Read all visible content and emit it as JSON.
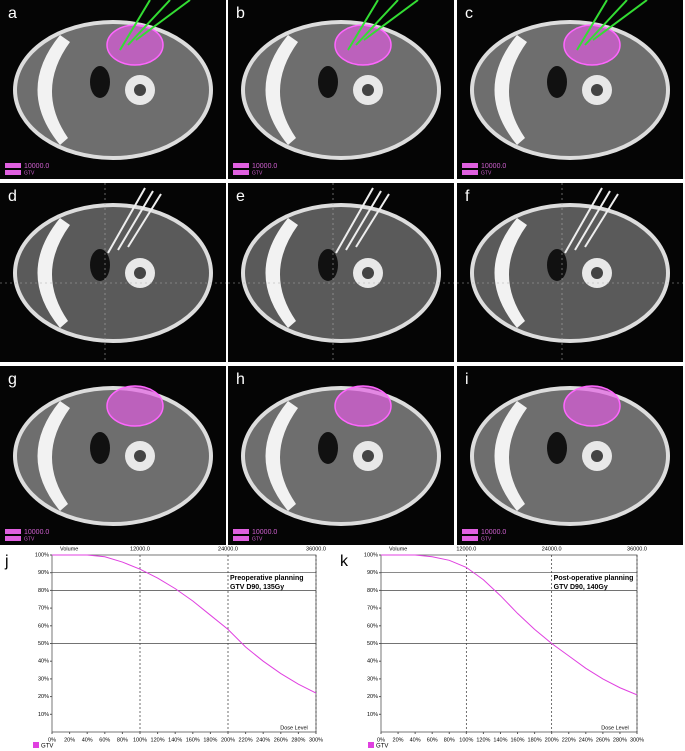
{
  "image_panels": [
    {
      "label": "a",
      "legend": [
        "10000.0",
        "GTV"
      ],
      "needles": true,
      "contour": true
    },
    {
      "label": "b",
      "legend": [
        "10000.0",
        "GTV"
      ],
      "needles": true,
      "contour": true
    },
    {
      "label": "c",
      "legend": [
        "10000.0",
        "GTV"
      ],
      "needles": true,
      "contour": true
    },
    {
      "label": "d"
    },
    {
      "label": "e"
    },
    {
      "label": "f"
    },
    {
      "label": "g",
      "legend": [
        "10000.0",
        "GTV"
      ],
      "contour": true
    },
    {
      "label": "h",
      "legend": [
        "10000.0",
        "GTV"
      ],
      "contour": true
    },
    {
      "label": "i",
      "legend": [
        "10000.0",
        "GTV"
      ],
      "contour": true
    }
  ],
  "chart_data": [
    {
      "type": "line",
      "panel": "j",
      "title": [
        "Preoperative planning",
        "GTV D90, 135Gy"
      ],
      "y_label": "Volume",
      "x_label": "Dose Level",
      "x": [
        0,
        20,
        40,
        60,
        80,
        100,
        120,
        140,
        160,
        180,
        200,
        220,
        240,
        260,
        280,
        300
      ],
      "series": [
        {
          "name": "GTV",
          "color": "#e040e0",
          "values": [
            100,
            100,
            100,
            99,
            96,
            92,
            87,
            81,
            74,
            66,
            58,
            48,
            40,
            33,
            27,
            22
          ]
        }
      ],
      "xlim": [
        0,
        300
      ],
      "ylim": [
        0,
        100
      ],
      "x2lim": [
        0,
        36000
      ],
      "xticks": [
        {
          "value": 0,
          "label": "0%"
        },
        {
          "value": 20,
          "label": "20%"
        },
        {
          "value": 40,
          "label": "40%"
        },
        {
          "value": 60,
          "label": "60%"
        },
        {
          "value": 80,
          "label": "80%"
        },
        {
          "value": 100,
          "label": "100%"
        },
        {
          "value": 120,
          "label": "120%"
        },
        {
          "value": 140,
          "label": "140%"
        },
        {
          "value": 160,
          "label": "160%"
        },
        {
          "value": 180,
          "label": "180%"
        },
        {
          "value": 200,
          "label": "200%"
        },
        {
          "value": 220,
          "label": "220%"
        },
        {
          "value": 240,
          "label": "240%"
        },
        {
          "value": 260,
          "label": "260%"
        },
        {
          "value": 280,
          "label": "280%"
        },
        {
          "value": 300,
          "label": "300%"
        }
      ],
      "yticks": [
        {
          "value": 10,
          "label": "10%"
        },
        {
          "value": 20,
          "label": "20%"
        },
        {
          "value": 30,
          "label": "30%"
        },
        {
          "value": 40,
          "label": "40%"
        },
        {
          "value": 50,
          "label": "50%"
        },
        {
          "value": 60,
          "label": "60%"
        },
        {
          "value": 70,
          "label": "70%"
        },
        {
          "value": 80,
          "label": "80%"
        },
        {
          "value": 90,
          "label": "90%"
        },
        {
          "value": 100,
          "label": "100%"
        }
      ],
      "x2ticks": [
        {
          "value": 12000,
          "label": "12000.0"
        },
        {
          "value": 24000,
          "label": "24000.0"
        },
        {
          "value": 36000,
          "label": "36000.0"
        }
      ],
      "hlines": [
        90,
        80,
        50
      ]
    },
    {
      "type": "line",
      "panel": "k",
      "title": [
        "Post-operative planning",
        "GTV D90, 140Gy"
      ],
      "y_label": "Volume",
      "x_label": "Dose Level",
      "x": [
        0,
        20,
        40,
        60,
        80,
        100,
        120,
        140,
        160,
        180,
        200,
        220,
        240,
        260,
        280,
        300
      ],
      "series": [
        {
          "name": "GTV",
          "color": "#e040e0",
          "values": [
            100,
            100,
            100,
            99,
            97,
            93,
            86,
            77,
            67,
            58,
            50,
            43,
            36,
            30,
            25,
            21
          ]
        }
      ],
      "xlim": [
        0,
        300
      ],
      "ylim": [
        0,
        100
      ],
      "x2lim": [
        0,
        36000
      ],
      "xticks": [
        {
          "value": 0,
          "label": "0%"
        },
        {
          "value": 20,
          "label": "20%"
        },
        {
          "value": 40,
          "label": "40%"
        },
        {
          "value": 60,
          "label": "60%"
        },
        {
          "value": 80,
          "label": "80%"
        },
        {
          "value": 100,
          "label": "100%"
        },
        {
          "value": 120,
          "label": "120%"
        },
        {
          "value": 140,
          "label": "140%"
        },
        {
          "value": 160,
          "label": "160%"
        },
        {
          "value": 180,
          "label": "180%"
        },
        {
          "value": 200,
          "label": "200%"
        },
        {
          "value": 220,
          "label": "220%"
        },
        {
          "value": 240,
          "label": "240%"
        },
        {
          "value": 260,
          "label": "260%"
        },
        {
          "value": 280,
          "label": "280%"
        },
        {
          "value": 300,
          "label": "300%"
        }
      ],
      "yticks": [
        {
          "value": 10,
          "label": "10%"
        },
        {
          "value": 20,
          "label": "20%"
        },
        {
          "value": 30,
          "label": "30%"
        },
        {
          "value": 40,
          "label": "40%"
        },
        {
          "value": 50,
          "label": "50%"
        },
        {
          "value": 60,
          "label": "60%"
        },
        {
          "value": 70,
          "label": "70%"
        },
        {
          "value": 80,
          "label": "80%"
        },
        {
          "value": 90,
          "label": "90%"
        },
        {
          "value": 100,
          "label": "100%"
        }
      ],
      "x2ticks": [
        {
          "value": 12000,
          "label": "12000.0"
        },
        {
          "value": 24000,
          "label": "24000.0"
        },
        {
          "value": 36000,
          "label": "36000.0"
        }
      ],
      "hlines": [
        90,
        80,
        50
      ]
    }
  ]
}
